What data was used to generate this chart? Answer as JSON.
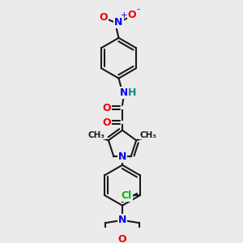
{
  "background_color": "#ebebeb",
  "bond_color": "#1a1a1a",
  "line_width": 1.5,
  "atom_colors": {
    "N": "#0000ee",
    "O": "#ee0000",
    "Cl": "#00bb00",
    "H": "#008888",
    "C": "#1a1a1a"
  },
  "font_size": 8.5
}
